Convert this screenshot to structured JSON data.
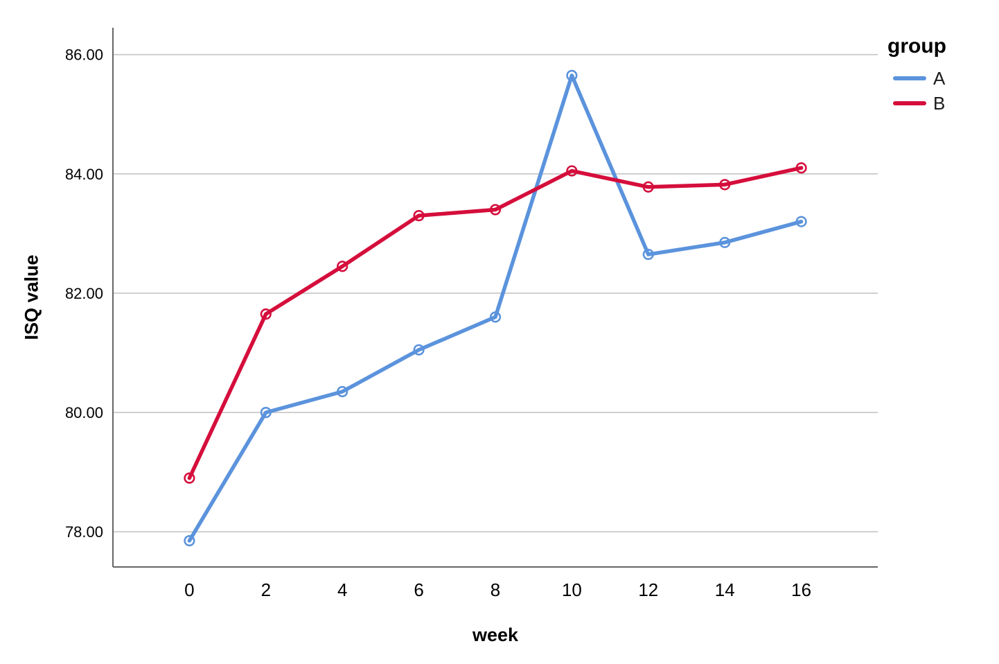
{
  "chart_data": {
    "type": "line",
    "xlabel": "week",
    "ylabel": "ISQ value",
    "legend_title": "group",
    "legend_position": "top-right-outside",
    "grid": true,
    "x": [
      0,
      2,
      4,
      6,
      8,
      10,
      12,
      14,
      16
    ],
    "x_tick_labels": [
      "0",
      "2",
      "4",
      "6",
      "8",
      "10",
      "12",
      "14",
      "16"
    ],
    "xlim": [
      -2,
      18
    ],
    "ylim": [
      77.41,
      86.45
    ],
    "y_ticks": [
      {
        "value": 86,
        "label": "86.00"
      },
      {
        "value": 84,
        "label": "84.00"
      },
      {
        "value": 82,
        "label": "82.00"
      },
      {
        "value": 80,
        "label": "80.00"
      },
      {
        "value": 78,
        "label": "78.00"
      }
    ],
    "series": [
      {
        "name": "A",
        "color": "#5B93DC",
        "values": [
          77.85,
          80.0,
          80.35,
          81.05,
          81.6,
          85.65,
          82.65,
          82.85,
          83.2
        ]
      },
      {
        "name": "B",
        "color": "#D50E3C",
        "values": [
          78.9,
          81.65,
          82.45,
          83.3,
          83.4,
          84.05,
          83.78,
          83.82,
          84.1
        ]
      }
    ],
    "marker": "open-circle",
    "colors": {
      "axis": "#666666",
      "gridline": "#c8c8c8",
      "text": "#000000",
      "series_a": "#5B93DC",
      "series_b": "#D50E3C"
    }
  }
}
